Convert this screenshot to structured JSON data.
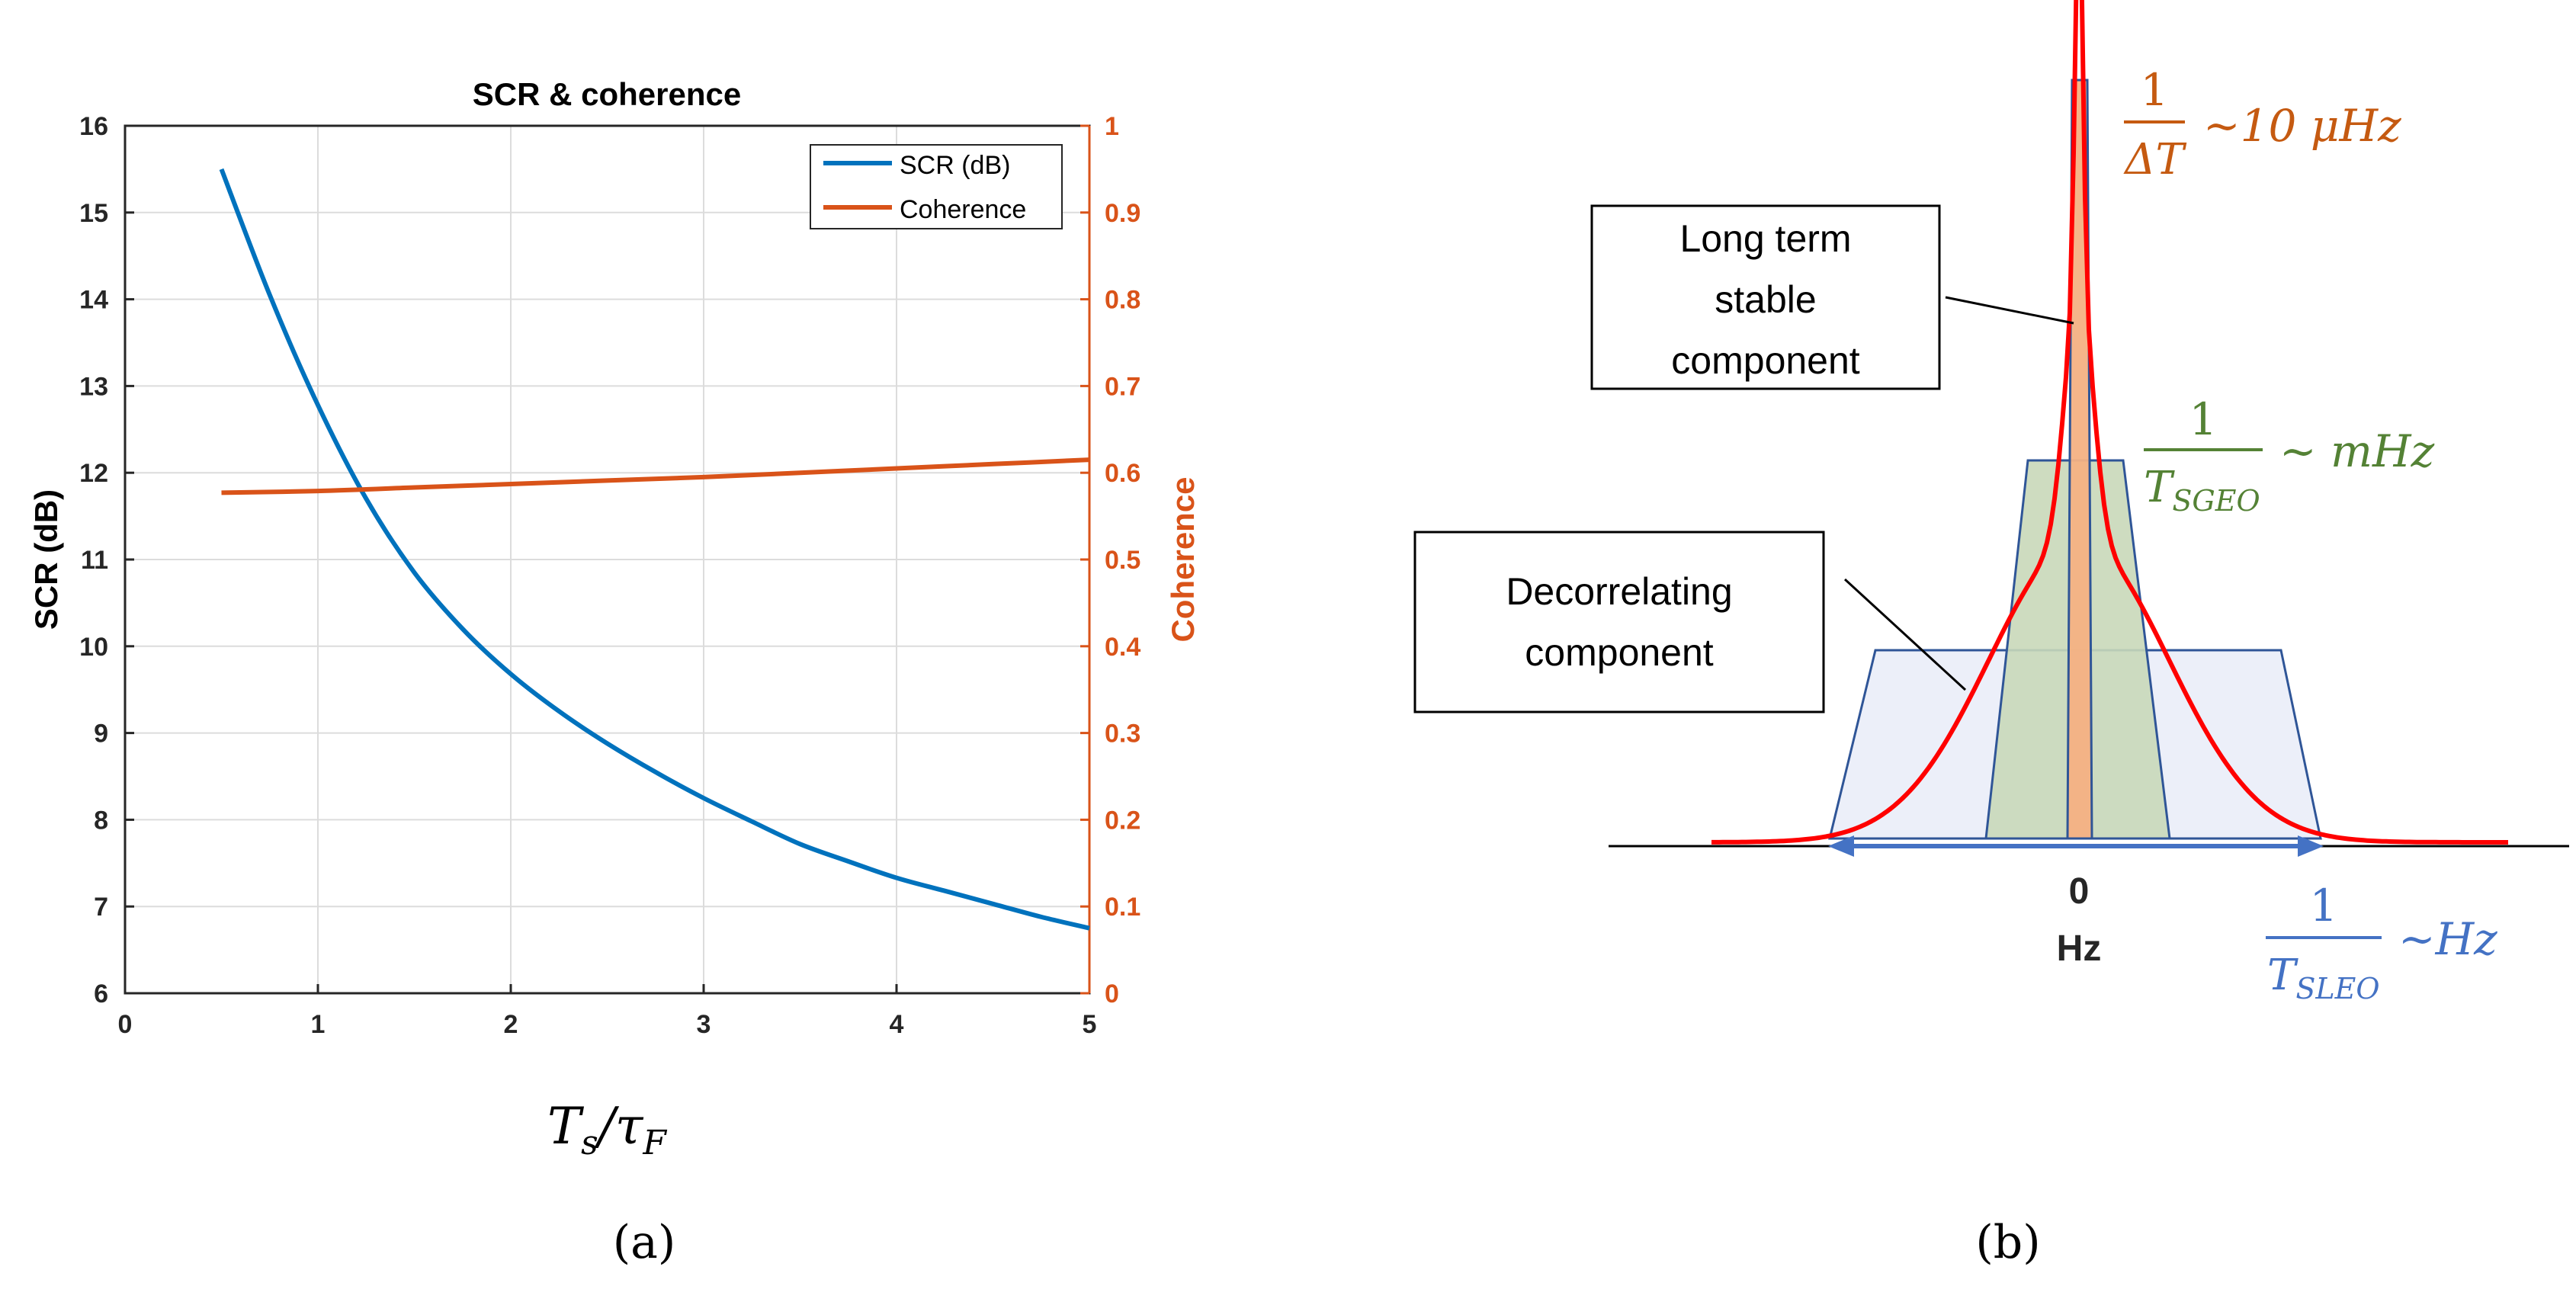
{
  "colors": {
    "scr": "#0072BD",
    "coherence": "#D95319",
    "grid": "#dcdcdc",
    "blue_label": "#4472C4",
    "green_label": "#548235",
    "orange_label": "#C55A11",
    "red_curve": "#FF0000",
    "blue_box_fill": "#E9ECF8",
    "blue_box_stroke": "#2F5597",
    "green_box_fill": "#C9D8B9",
    "orange_box_fill": "#F4B183"
  },
  "chart_data": [
    {
      "panel": "a",
      "type": "line",
      "title": "SCR & coherence",
      "xlabel": "T_s/τ_F",
      "xlabel_main": "T",
      "xlabel_sub1": "s",
      "xlabel_slash": "/τ",
      "xlabel_sub2": "F",
      "ylabel_left": "SCR (dB)",
      "ylabel_right": "Coherence",
      "xlim": [
        0,
        5
      ],
      "ylim_left": [
        6,
        16
      ],
      "ylim_right": [
        0,
        1
      ],
      "xticks": [
        "0",
        "1",
        "2",
        "3",
        "4",
        "5"
      ],
      "yticks_left": [
        "6",
        "7",
        "8",
        "9",
        "10",
        "11",
        "12",
        "13",
        "14",
        "15",
        "16"
      ],
      "yticks_right": [
        "0",
        "0.1",
        "0.2",
        "0.3",
        "0.4",
        "0.5",
        "0.6",
        "0.7",
        "0.8",
        "0.9",
        "1"
      ],
      "grid": true,
      "legend_position": "top-right",
      "series": [
        {
          "name": "SCR (dB)",
          "axis": "left",
          "x": [
            0.5,
            0.75,
            1.0,
            1.25,
            1.5,
            1.75,
            2.0,
            2.25,
            2.5,
            2.75,
            3.0,
            3.25,
            3.5,
            3.75,
            4.0,
            4.25,
            4.5,
            4.75,
            5.0
          ],
          "y": [
            15.5,
            14.05,
            12.78,
            11.7,
            10.85,
            10.2,
            9.68,
            9.25,
            8.88,
            8.55,
            8.25,
            7.98,
            7.72,
            7.52,
            7.33,
            7.18,
            7.03,
            6.88,
            6.75
          ]
        },
        {
          "name": "Coherence",
          "axis": "right",
          "x": [
            0.5,
            1.0,
            1.5,
            2.0,
            2.5,
            3.0,
            3.5,
            4.0,
            4.5,
            5.0
          ],
          "y": [
            0.577,
            0.579,
            0.583,
            0.587,
            0.591,
            0.595,
            0.6,
            0.605,
            0.61,
            0.615
          ]
        }
      ],
      "caption": "(a)"
    },
    {
      "panel": "b",
      "type": "diagram",
      "description_labels": {
        "long_term": [
          "Long term",
          "stable",
          "component"
        ],
        "decorrelating": [
          "Decorrelating",
          "component"
        ],
        "zero_tick": "0",
        "axis_unit": "Hz",
        "label_dt": {
          "num": "1",
          "den": "ΔT",
          "suffix": "~10 μHz"
        },
        "label_sgeo": {
          "num": "1",
          "den_main": "T",
          "den_sub": "SGEO",
          "suffix": "~ mHz"
        },
        "label_sleo": {
          "num": "1",
          "den_main": "T",
          "den_sub": "SLEO",
          "suffix": "~Hz"
        }
      },
      "caption": "(b)"
    }
  ]
}
